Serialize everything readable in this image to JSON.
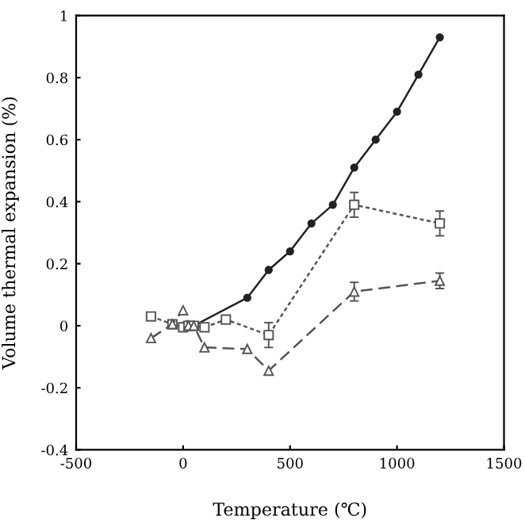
{
  "chart_data": {
    "type": "line",
    "xlabel": "Temperature (℃)",
    "ylabel": "Volume thermal expansion (%)",
    "xlim": [
      -500,
      1500
    ],
    "xticks": [
      -500,
      0,
      500,
      1000,
      1500
    ],
    "ylim": [
      -0.4,
      1
    ],
    "yticks": [
      -0.4,
      -0.2,
      0,
      0.2,
      0.4,
      0.6,
      0.8,
      1
    ],
    "grid": false,
    "legend": false,
    "series": [
      {
        "color": "#222222",
        "marker": "circle",
        "line_style": "solid",
        "x": [
          0,
          25,
          50,
          300,
          400,
          500,
          600,
          700,
          800,
          900,
          1000,
          1100,
          1200
        ],
        "values": [
          0,
          0,
          0,
          0.09,
          0.18,
          0.24,
          0.33,
          0.39,
          0.51,
          0.6,
          0.69,
          0.81,
          0.93
        ]
      },
      {
        "color": "#555555",
        "marker": "square",
        "line_style": "dotted",
        "x": [
          -150,
          -50,
          0,
          25,
          50,
          100,
          200,
          400,
          800,
          1200
        ],
        "values": [
          0.03,
          0.005,
          -0.005,
          0,
          0,
          -0.005,
          0.02,
          -0.03,
          0.39,
          0.33
        ],
        "errors": [
          null,
          null,
          null,
          null,
          null,
          null,
          null,
          0.04,
          0.04,
          0.04
        ]
      },
      {
        "color": "#555555",
        "marker": "triangle",
        "line_style": "dashed",
        "x": [
          -150,
          -50,
          0,
          25,
          50,
          100,
          300,
          400,
          800,
          1200
        ],
        "values": [
          -0.04,
          0.005,
          0.05,
          0,
          0,
          -0.07,
          -0.075,
          -0.145,
          0.11,
          0.145
        ],
        "errors": [
          null,
          null,
          null,
          null,
          null,
          null,
          null,
          null,
          0.03,
          0.025
        ]
      }
    ]
  }
}
